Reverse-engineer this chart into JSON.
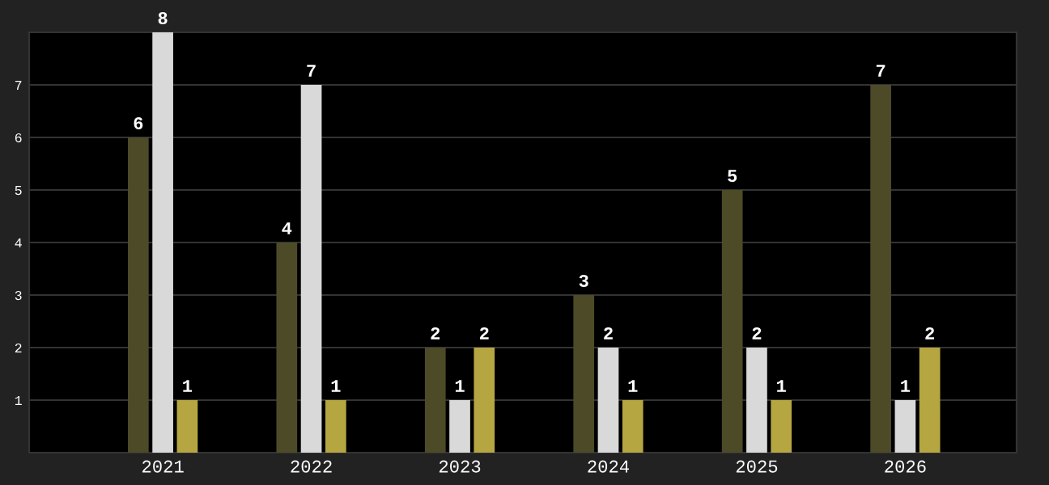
{
  "chart_data": {
    "type": "bar",
    "categories": [
      "2021",
      "2022",
      "2023",
      "2024",
      "2025",
      "2026"
    ],
    "series": [
      {
        "color": "#4d4a27",
        "values": [
          6,
          4,
          2,
          3,
          5,
          7
        ]
      },
      {
        "color": "#d9d9d9",
        "values": [
          8,
          7,
          1,
          2,
          2,
          1
        ]
      },
      {
        "color": "#b5a642",
        "values": [
          1,
          1,
          2,
          1,
          1,
          2
        ]
      }
    ],
    "ylim": [
      0,
      8
    ],
    "yticks": [
      1,
      2,
      3,
      4,
      5,
      6,
      7
    ],
    "grid": "y",
    "data_labels": true
  }
}
